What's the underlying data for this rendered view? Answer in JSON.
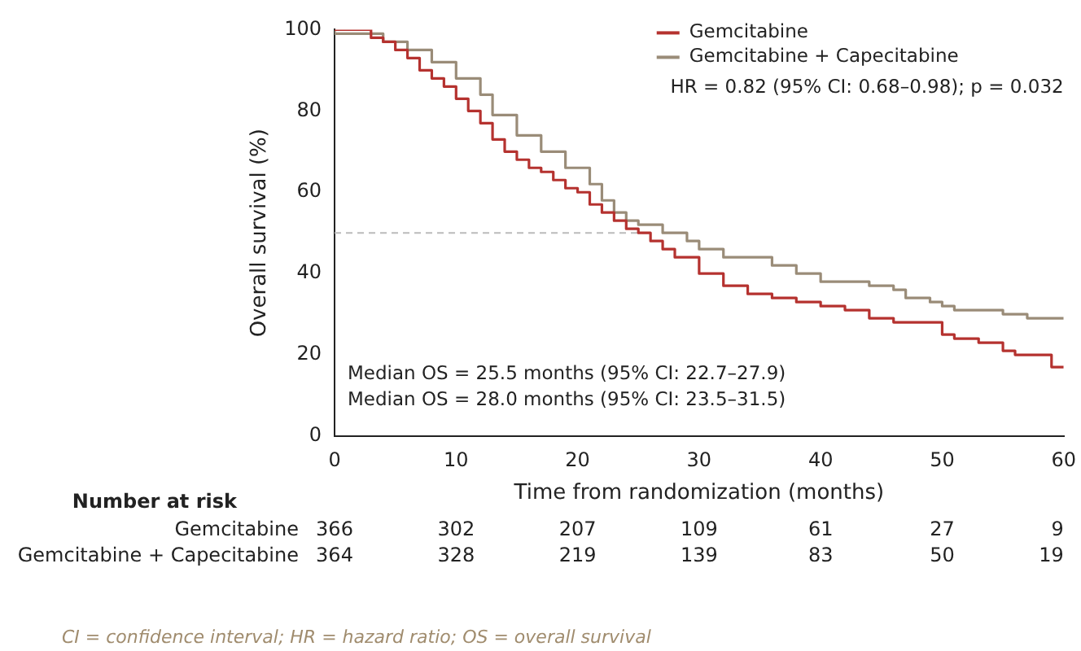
{
  "chart_data": {
    "type": "step",
    "xlabel": "Time from randomization (months)",
    "ylabel": "Overall survival (%)",
    "xlim": [
      0,
      60
    ],
    "xticks": [
      0,
      10,
      20,
      30,
      40,
      50,
      60
    ],
    "ylim": [
      0,
      100
    ],
    "yticks": [
      0,
      20,
      40,
      60,
      80,
      100
    ],
    "grid": false,
    "legend": "top right",
    "line_style": "solid",
    "marker": "none",
    "series": [
      {
        "name": "Gemcitabine",
        "color": "#b5322f",
        "x": [
          0,
          3,
          4,
          5,
          6,
          7,
          8,
          9,
          10,
          11,
          12,
          13,
          14,
          15,
          16,
          17,
          18,
          19,
          20,
          21,
          22,
          23,
          24,
          25,
          26,
          27,
          28,
          30,
          32,
          34,
          36,
          38,
          40,
          42,
          44,
          46,
          50,
          51,
          53,
          55,
          56,
          59,
          60
        ],
        "values": [
          100,
          100,
          98,
          97,
          95,
          93,
          90,
          88,
          86,
          83,
          80,
          77,
          73,
          70,
          68,
          66,
          65,
          63,
          61,
          60,
          57,
          55,
          53,
          51,
          50,
          48,
          46,
          44,
          40,
          37,
          35,
          34,
          33,
          32,
          31,
          29,
          28,
          25,
          24,
          23,
          21,
          20,
          17
        ]
      },
      {
        "name": "Gemcitabine + Capecitabine",
        "color": "#9a8c78",
        "x": [
          0,
          4,
          6,
          8,
          10,
          12,
          13,
          15,
          17,
          19,
          21,
          22,
          23,
          24,
          25,
          27,
          29,
          30,
          32,
          33,
          36,
          38,
          40,
          42,
          44,
          46,
          47,
          49,
          50,
          51,
          52,
          55,
          57,
          58,
          60
        ],
        "values": [
          100,
          99,
          97,
          95,
          92,
          88,
          84,
          79,
          74,
          70,
          66,
          62,
          58,
          55,
          53,
          52,
          50,
          48,
          46,
          44,
          44,
          42,
          40,
          38,
          38,
          37,
          36,
          34,
          33,
          32,
          31,
          31,
          30,
          29,
          29
        ]
      }
    ],
    "ref_lines": [
      {
        "axis": "y",
        "value": 50,
        "color": "#bbbbbb",
        "line_style": "dashed"
      }
    ],
    "annotations": [
      "HR = 0.82 (95% CI: 0.68–0.98); p = 0.032",
      "Median OS = 25.5 months (95% CI: 22.7–27.9)",
      "Median OS = 28.0 months (95% CI: 23.5–31.5)",
      "Number at risk",
      "Gemcitabine",
      "366",
      "302",
      "207",
      "109",
      "61",
      "27",
      "9",
      "Gemcitabine + Capecitabine",
      "364",
      "328",
      "219",
      "139",
      "83",
      "50",
      "19",
      "CI = confidence interval; HR = hazard ratio; OS = overall survival"
    ]
  }
}
